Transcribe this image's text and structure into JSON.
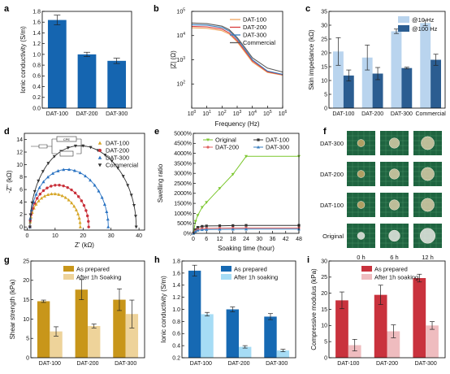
{
  "panel_labels": {
    "a": "a",
    "b": "b",
    "c": "c",
    "d": "d",
    "e": "e",
    "f": "f",
    "g": "g",
    "h": "h",
    "i": "i"
  },
  "colors": {
    "a_bar": "#1565b0",
    "c_10": "#b9d4ee",
    "c_100": "#2b5d91",
    "g_dark": "#c8961a",
    "g_light": "#eed39a",
    "h_dark": "#1669b3",
    "h_light": "#a6dcf5",
    "i_dark": "#c9323d",
    "i_light": "#efbcbf",
    "b_dat100": "#f0a45d",
    "b_dat200": "#d83b3b",
    "b_dat300": "#3a7fc0",
    "b_comm": "#5a5a5a",
    "d_dat100": "#d6a626",
    "d_dat200": "#c9303a",
    "d_dat300": "#2a73c2",
    "d_comm": "#333333",
    "e_orig": "#7cc72f",
    "e_dat200": "#e06060",
    "e_dat100": "#333333",
    "e_dat300": "#3a7fc0",
    "photo_bg": "#1f6440",
    "photo_grid": "#4f9a6c"
  },
  "chart_data": [
    {
      "panel": "a",
      "type": "bar",
      "categories": [
        "DAT-100",
        "DAT-200",
        "DAT-300"
      ],
      "values": [
        1.64,
        1.0,
        0.88
      ],
      "errors": [
        0.09,
        0.04,
        0.05
      ],
      "ylabel": "Ionic conductivity (S/m)",
      "ylim": [
        0,
        1.8
      ],
      "yticks": [
        "0.0",
        "0.2",
        "0.4",
        "0.6",
        "0.8",
        "1.0",
        "1.2",
        "1.4",
        "1.6",
        "1.8"
      ]
    },
    {
      "panel": "b",
      "type": "line",
      "xlabel": "Frequency (Hz)",
      "ylabel": "|Z| (Ω)",
      "xscale": "log",
      "yscale": "log",
      "xlim": [
        1,
        1000000
      ],
      "ylim": [
        10,
        100000
      ],
      "xticks": [
        {
          "v": 1,
          "base": "10",
          "exp": "0"
        },
        {
          "v": 10,
          "base": "10",
          "exp": "1"
        },
        {
          "v": 100,
          "base": "10",
          "exp": "2"
        },
        {
          "v": 1000,
          "base": "10",
          "exp": "3"
        },
        {
          "v": 10000,
          "base": "10",
          "exp": "4"
        },
        {
          "v": 100000,
          "base": "10",
          "exp": "5"
        },
        {
          "v": 1000000,
          "base": "10",
          "exp": "6"
        }
      ],
      "yticks": [
        {
          "v": 100,
          "base": "10",
          "exp": "2"
        },
        {
          "v": 1000,
          "base": "10",
          "exp": "3"
        },
        {
          "v": 10000,
          "base": "10",
          "exp": "4"
        },
        {
          "v": 100000,
          "base": "10",
          "exp": "5"
        }
      ],
      "legend_position": "top-right",
      "series": [
        {
          "name": "DAT-100",
          "x": [
            1,
            10,
            100,
            300,
            1000,
            3000,
            10000,
            100000,
            1000000
          ],
          "y": [
            21000,
            20000,
            16000,
            11500,
            5500,
            2200,
            800,
            300,
            230
          ]
        },
        {
          "name": "DAT-200",
          "x": [
            1,
            10,
            100,
            300,
            1000,
            3000,
            10000,
            100000,
            1000000
          ],
          "y": [
            24000,
            23000,
            18500,
            13000,
            6200,
            2500,
            900,
            320,
            240
          ]
        },
        {
          "name": "DAT-300",
          "x": [
            1,
            10,
            100,
            300,
            1000,
            3000,
            10000,
            100000,
            1000000
          ],
          "y": [
            28000,
            27000,
            21500,
            15500,
            7300,
            2900,
            1000,
            340,
            250
          ]
        },
        {
          "name": "Commercial",
          "x": [
            1,
            10,
            100,
            300,
            1000,
            3000,
            10000,
            100000,
            1000000
          ],
          "y": [
            33000,
            31000,
            24500,
            17500,
            8300,
            3400,
            1200,
            450,
            310
          ]
        }
      ]
    },
    {
      "panel": "c",
      "type": "bar",
      "categories": [
        "DAT-100",
        "DAT-200",
        "DAT-300",
        "Commercial"
      ],
      "series": [
        {
          "name": "@10 Hz",
          "values": [
            20.5,
            18.3,
            27.8,
            30.8
          ],
          "errors": [
            5.0,
            4.5,
            0.8,
            1.0
          ]
        },
        {
          "name": "@100 Hz",
          "values": [
            11.8,
            12.5,
            14.5,
            17.5
          ],
          "errors": [
            2.0,
            2.2,
            0.3,
            2.0
          ]
        }
      ],
      "ylabel": "Skin impedance (kΩ)",
      "ylim": [
        0,
        35
      ],
      "yticks": [
        "0",
        "5",
        "10",
        "15",
        "20",
        "25",
        "30",
        "35"
      ],
      "legend_position": "top-right"
    },
    {
      "panel": "d",
      "type": "scatter",
      "xlabel": "Z' (kΩ)",
      "ylabel": "-Z'' (kΩ)",
      "xlim": [
        -1,
        42
      ],
      "ylim": [
        -0.5,
        15
      ],
      "xticks": [
        "0",
        "10",
        "20",
        "30",
        "40"
      ],
      "yticks": [
        "0",
        "2",
        "4",
        "6",
        "8",
        "10",
        "12",
        "14"
      ],
      "legend_position": "top-right",
      "series": [
        {
          "name": "DAT-100",
          "x_from": 1.0,
          "x_to": 19.0,
          "peak": 5.3
        },
        {
          "name": "DAT-200",
          "x_from": 1.0,
          "x_to": 22.0,
          "peak": 6.7
        },
        {
          "name": "DAT-300",
          "x_from": 1.0,
          "x_to": 29.0,
          "peak": 9.2
        },
        {
          "name": "Commercial",
          "x_from": 1.0,
          "x_to": 39.0,
          "peak": 13.0
        }
      ],
      "inset": {
        "labels": [
          "CPE"
        ]
      }
    },
    {
      "panel": "e",
      "type": "line",
      "xlabel": "Soaking time (hour)",
      "ylabel": "Swelling ratio",
      "xlim": [
        0,
        48
      ],
      "ylim": [
        0,
        5000
      ],
      "xticks": [
        "0",
        "6",
        "12",
        "18",
        "24",
        "30",
        "36",
        "42",
        "48"
      ],
      "yticks": [
        "0%",
        "500%",
        "1000%",
        "1500%",
        "2000%",
        "2500%",
        "3000%",
        "3500%",
        "4000%",
        "4500%",
        "5000%"
      ],
      "legend_position": "top",
      "series": [
        {
          "name": "Original",
          "x": [
            0,
            1,
            2,
            4,
            6,
            12,
            18,
            24,
            48
          ],
          "y": [
            0,
            600,
            900,
            1300,
            1550,
            2250,
            2950,
            3850,
            3850
          ]
        },
        {
          "name": "DAT-100",
          "x": [
            0,
            1,
            2,
            4,
            6,
            12,
            18,
            24,
            48
          ],
          "y": [
            0,
            180,
            300,
            350,
            370,
            380,
            390,
            400,
            400
          ]
        },
        {
          "name": "DAT-200",
          "x": [
            0,
            1,
            2,
            4,
            6,
            12,
            18,
            24,
            48
          ],
          "y": [
            0,
            120,
            200,
            240,
            250,
            260,
            265,
            270,
            270
          ]
        },
        {
          "name": "DAT-300",
          "x": [
            0,
            1,
            2,
            4,
            6,
            12,
            18,
            24,
            48
          ],
          "y": [
            0,
            90,
            150,
            180,
            190,
            200,
            205,
            210,
            210
          ]
        }
      ]
    },
    {
      "panel": "g",
      "type": "bar",
      "categories": [
        "DAT-100",
        "DAT-200",
        "DAT-300"
      ],
      "series": [
        {
          "name": "As prepared",
          "values": [
            14.6,
            17.6,
            15.0
          ],
          "errors": [
            0.3,
            2.6,
            2.8
          ]
        },
        {
          "name": "After 1h Soaking",
          "values": [
            6.8,
            8.2,
            11.3
          ],
          "errors": [
            1.2,
            0.5,
            3.6
          ]
        }
      ],
      "ylabel": "Shear strength (kPa)",
      "ylim": [
        0,
        25
      ],
      "yticks": [
        "0",
        "5",
        "10",
        "15",
        "20",
        "25"
      ],
      "legend_position": "top"
    },
    {
      "panel": "h",
      "type": "bar",
      "categories": [
        "DAT-100",
        "DAT-200",
        "DAT-300"
      ],
      "series": [
        {
          "name": "As prepared",
          "values": [
            1.64,
            1.0,
            0.88
          ],
          "errors": [
            0.09,
            0.04,
            0.05
          ]
        },
        {
          "name": "After 1h soaking",
          "values": [
            0.92,
            0.38,
            0.32
          ],
          "errors": [
            0.03,
            0.02,
            0.02
          ]
        }
      ],
      "ylabel": "Ionic conductivity (S/m)",
      "ylim": [
        0.2,
        1.8
      ],
      "yticks": [
        "0.2",
        "0.4",
        "0.6",
        "0.8",
        "1.0",
        "1.2",
        "1.4",
        "1.6",
        "1.8"
      ],
      "legend_position": "top-right"
    },
    {
      "panel": "i",
      "type": "bar",
      "categories": [
        "DAT-100",
        "DAT-200",
        "DAT-300"
      ],
      "series": [
        {
          "name": "As prepared",
          "values": [
            17.8,
            19.5,
            24.7
          ],
          "errors": [
            2.6,
            3.0,
            1.2
          ]
        },
        {
          "name": "After 1h soaking",
          "values": [
            3.9,
            8.2,
            10.0
          ],
          "errors": [
            1.8,
            2.0,
            1.2
          ]
        }
      ],
      "ylabel": "Compressive modulus (kPa)",
      "ylim": [
        0,
        30
      ],
      "yticks": [
        "0",
        "5",
        "10",
        "15",
        "20",
        "25",
        "30"
      ],
      "legend_position": "top"
    }
  ],
  "photo_panel": {
    "rows": [
      "DAT-300",
      "DAT-200",
      "DAT-100",
      "Original"
    ],
    "cols": [
      "0 h",
      "6 h",
      "12 h"
    ]
  }
}
